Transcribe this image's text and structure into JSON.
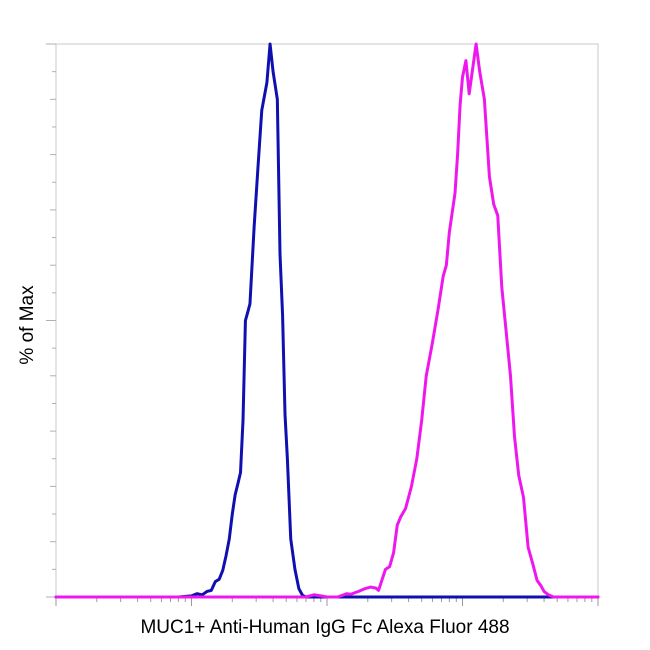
{
  "chart_data": {
    "type": "line",
    "title": "",
    "xlabel": "MUC1+ Anti-Human IgG Fc Alexa Fluor 488",
    "ylabel": "% of Max",
    "x_scale": "log",
    "y_scale": "linear",
    "xlim": [
      0.1,
      1000
    ],
    "ylim": [
      0,
      100
    ],
    "grid": false,
    "legend": "none",
    "series": [
      {
        "color": "#1010b0",
        "points": [
          [
            0.1,
            0
          ],
          [
            0.8,
            0
          ],
          [
            1.0,
            0.2
          ],
          [
            1.1,
            0.6
          ],
          [
            1.2,
            0.4
          ],
          [
            1.3,
            1
          ],
          [
            1.4,
            1.2
          ],
          [
            1.5,
            2.8
          ],
          [
            1.6,
            3.2
          ],
          [
            1.7,
            4.8
          ],
          [
            1.8,
            7.5
          ],
          [
            1.9,
            10.5
          ],
          [
            2.0,
            15
          ],
          [
            2.1,
            18.5
          ],
          [
            2.2,
            20.5
          ],
          [
            2.3,
            22.5
          ],
          [
            2.4,
            32
          ],
          [
            2.5,
            50
          ],
          [
            2.6,
            51.5
          ],
          [
            2.7,
            53
          ],
          [
            2.9,
            67
          ],
          [
            3.1,
            78
          ],
          [
            3.3,
            88
          ],
          [
            3.6,
            93
          ],
          [
            3.8,
            100
          ],
          [
            4.0,
            95
          ],
          [
            4.3,
            90
          ],
          [
            4.5,
            62
          ],
          [
            4.7,
            51
          ],
          [
            4.9,
            33
          ],
          [
            5.1,
            25
          ],
          [
            5.4,
            10.5
          ],
          [
            5.8,
            5
          ],
          [
            6.2,
            1.5
          ],
          [
            6.6,
            0.3
          ],
          [
            7.0,
            0
          ],
          [
            1000,
            0
          ]
        ]
      },
      {
        "color": "#ee18ee",
        "points": [
          [
            0.1,
            0
          ],
          [
            7.0,
            0
          ],
          [
            8.0,
            0.4
          ],
          [
            9.0,
            0.2
          ],
          [
            10.0,
            0
          ],
          [
            12.0,
            0
          ],
          [
            14.0,
            0.6
          ],
          [
            15.0,
            0.5
          ],
          [
            17.0,
            1
          ],
          [
            19.0,
            1.5
          ],
          [
            21.0,
            1.8
          ],
          [
            23.0,
            1.6
          ],
          [
            24.0,
            1.2
          ],
          [
            25.0,
            2.5
          ],
          [
            27.0,
            5
          ],
          [
            29.0,
            5.5
          ],
          [
            31.0,
            8
          ],
          [
            33.0,
            13
          ],
          [
            35.0,
            14.5
          ],
          [
            38.0,
            16
          ],
          [
            42.0,
            20
          ],
          [
            46.0,
            25
          ],
          [
            50.0,
            32
          ],
          [
            54.0,
            40
          ],
          [
            60.0,
            46
          ],
          [
            66.0,
            52
          ],
          [
            72.0,
            58
          ],
          [
            76.0,
            60
          ],
          [
            80.0,
            66
          ],
          [
            88.0,
            73
          ],
          [
            92.0,
            80
          ],
          [
            96.0,
            89
          ],
          [
            100.0,
            94
          ],
          [
            106.0,
            97
          ],
          [
            112.0,
            91
          ],
          [
            118.0,
            95
          ],
          [
            126.0,
            100
          ],
          [
            134.0,
            95
          ],
          [
            145.0,
            90
          ],
          [
            158.0,
            76
          ],
          [
            170.0,
            71
          ],
          [
            182.0,
            69
          ],
          [
            195.0,
            56
          ],
          [
            210.0,
            48
          ],
          [
            226.0,
            40
          ],
          [
            242.0,
            29
          ],
          [
            260.0,
            22
          ],
          [
            282.0,
            18
          ],
          [
            305.0,
            9
          ],
          [
            330.0,
            6
          ],
          [
            355.0,
            3
          ],
          [
            380.0,
            2
          ],
          [
            400.0,
            1
          ],
          [
            430.0,
            0.4
          ],
          [
            470.0,
            0
          ],
          [
            1000,
            0
          ]
        ]
      }
    ]
  }
}
